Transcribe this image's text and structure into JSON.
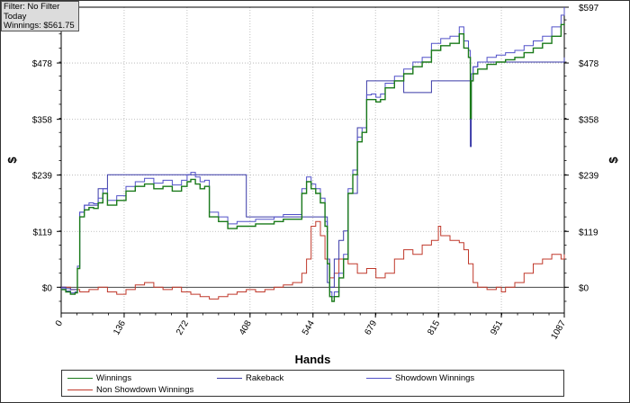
{
  "info_box": {
    "filter": "Filter: No Filter",
    "period": "Today",
    "winnings": "Winnings: $561.75"
  },
  "chart_data": {
    "type": "line",
    "xlabel": "Hands",
    "ylabel": "$",
    "title": "",
    "xlim": [
      0,
      1087
    ],
    "ylim": [
      -55,
      597
    ],
    "x_ticks": [
      "0",
      "136",
      "272",
      "408",
      "544",
      "679",
      "815",
      "951",
      "1087"
    ],
    "x_tick_values": [
      0,
      136,
      272,
      408,
      544,
      679,
      815,
      951,
      1087
    ],
    "y_ticks": [
      "$0",
      "$119",
      "$239",
      "$358",
      "$478",
      "$597"
    ],
    "y_tick_values": [
      0,
      119,
      239,
      358,
      478,
      597
    ],
    "grid": true,
    "legend_position": "bottom",
    "series": [
      {
        "name": "Winnings",
        "color": "#1a7a1a",
        "x": [
          0,
          10,
          20,
          30,
          35,
          40,
          50,
          60,
          70,
          80,
          90,
          100,
          120,
          140,
          160,
          180,
          200,
          220,
          240,
          260,
          272,
          280,
          290,
          300,
          310,
          320,
          340,
          360,
          380,
          400,
          420,
          440,
          460,
          480,
          500,
          520,
          530,
          540,
          550,
          560,
          570,
          575,
          580,
          585,
          590,
          600,
          610,
          620,
          630,
          640,
          650,
          660,
          670,
          680,
          690,
          700,
          720,
          740,
          760,
          780,
          800,
          820,
          840,
          860,
          870,
          880,
          884,
          886,
          890,
          900,
          920,
          940,
          960,
          980,
          1000,
          1020,
          1040,
          1060,
          1080,
          1087
        ],
        "values": [
          -5,
          -10,
          -15,
          -12,
          40,
          150,
          165,
          170,
          168,
          180,
          200,
          175,
          185,
          205,
          215,
          220,
          210,
          215,
          205,
          215,
          225,
          230,
          220,
          210,
          215,
          150,
          140,
          125,
          130,
          130,
          135,
          135,
          140,
          145,
          145,
          200,
          225,
          210,
          200,
          180,
          130,
          50,
          -20,
          -30,
          -20,
          20,
          60,
          200,
          240,
          310,
          330,
          400,
          400,
          395,
          400,
          425,
          440,
          455,
          470,
          480,
          505,
          515,
          520,
          540,
          510,
          490,
          360,
          440,
          455,
          465,
          475,
          480,
          485,
          490,
          500,
          510,
          520,
          535,
          560,
          562
        ]
      },
      {
        "name": "Rakeback",
        "color": "#3a3aa8",
        "x": [
          0,
          10,
          20,
          30,
          35,
          40,
          50,
          60,
          80,
          100,
          120,
          140,
          160,
          200,
          240,
          270,
          300,
          320,
          340,
          360,
          380,
          400,
          440,
          480,
          500,
          520,
          540,
          560,
          575,
          580,
          590,
          600,
          610,
          620,
          640,
          660,
          680,
          700,
          740,
          790,
          800,
          840,
          860,
          880,
          884,
          886,
          890,
          900,
          920,
          940,
          960,
          980,
          1000,
          1020,
          1040,
          1060,
          1080,
          1087
        ],
        "values": [
          0,
          -3,
          -5,
          -5,
          40,
          160,
          175,
          175,
          210,
          240,
          240,
          240,
          240,
          240,
          240,
          240,
          240,
          240,
          240,
          240,
          240,
          150,
          150,
          150,
          150,
          150,
          150,
          150,
          10,
          0,
          60,
          100,
          120,
          200,
          340,
          440,
          440,
          440,
          415,
          415,
          440,
          440,
          440,
          440,
          300,
          440,
          470,
          480,
          480,
          480,
          480,
          480,
          480,
          480,
          480,
          480,
          480,
          490
        ]
      },
      {
        "name": "Showdown Winnings",
        "color": "#5050c8",
        "x": [
          0,
          10,
          20,
          30,
          35,
          40,
          50,
          60,
          70,
          80,
          90,
          100,
          120,
          140,
          160,
          180,
          200,
          220,
          240,
          260,
          272,
          280,
          290,
          300,
          310,
          320,
          340,
          360,
          380,
          400,
          420,
          440,
          460,
          480,
          500,
          520,
          530,
          540,
          550,
          560,
          570,
          575,
          580,
          585,
          590,
          600,
          610,
          620,
          630,
          640,
          650,
          660,
          670,
          680,
          690,
          700,
          720,
          740,
          760,
          780,
          800,
          820,
          840,
          860,
          870,
          880,
          884,
          886,
          890,
          900,
          920,
          940,
          960,
          980,
          1000,
          1020,
          1040,
          1060,
          1080,
          1087
        ],
        "values": [
          -3,
          -8,
          -12,
          -10,
          45,
          160,
          175,
          180,
          178,
          190,
          210,
          185,
          195,
          215,
          225,
          232,
          222,
          228,
          218,
          228,
          240,
          245,
          235,
          225,
          228,
          160,
          150,
          135,
          140,
          140,
          145,
          145,
          150,
          155,
          155,
          210,
          235,
          220,
          210,
          190,
          140,
          60,
          -10,
          -20,
          -10,
          30,
          70,
          210,
          250,
          320,
          340,
          410,
          412,
          405,
          412,
          435,
          450,
          465,
          480,
          490,
          520,
          530,
          535,
          555,
          525,
          505,
          380,
          455,
          470,
          480,
          490,
          495,
          500,
          505,
          515,
          525,
          535,
          555,
          580,
          597
        ]
      },
      {
        "name": "Non Showdown Winnings",
        "color": "#c0392b",
        "x": [
          0,
          20,
          40,
          60,
          80,
          100,
          120,
          140,
          160,
          180,
          200,
          220,
          240,
          260,
          280,
          300,
          320,
          340,
          360,
          380,
          400,
          420,
          440,
          460,
          480,
          500,
          520,
          530,
          540,
          550,
          560,
          570,
          580,
          590,
          600,
          620,
          640,
          660,
          680,
          700,
          720,
          740,
          760,
          780,
          800,
          815,
          820,
          840,
          860,
          870,
          880,
          890,
          900,
          920,
          940,
          951,
          960,
          980,
          1000,
          1020,
          1040,
          1060,
          1080,
          1087
        ],
        "values": [
          0,
          -5,
          -10,
          -5,
          0,
          -10,
          -15,
          -5,
          5,
          10,
          0,
          -5,
          0,
          -10,
          -15,
          -20,
          -25,
          -20,
          -15,
          -10,
          -5,
          -10,
          -5,
          0,
          5,
          10,
          30,
          60,
          130,
          140,
          110,
          60,
          20,
          30,
          60,
          50,
          30,
          40,
          20,
          30,
          60,
          80,
          70,
          90,
          100,
          130,
          110,
          100,
          95,
          80,
          50,
          10,
          0,
          -5,
          0,
          -10,
          0,
          10,
          30,
          50,
          60,
          70,
          60,
          70
        ]
      }
    ]
  }
}
